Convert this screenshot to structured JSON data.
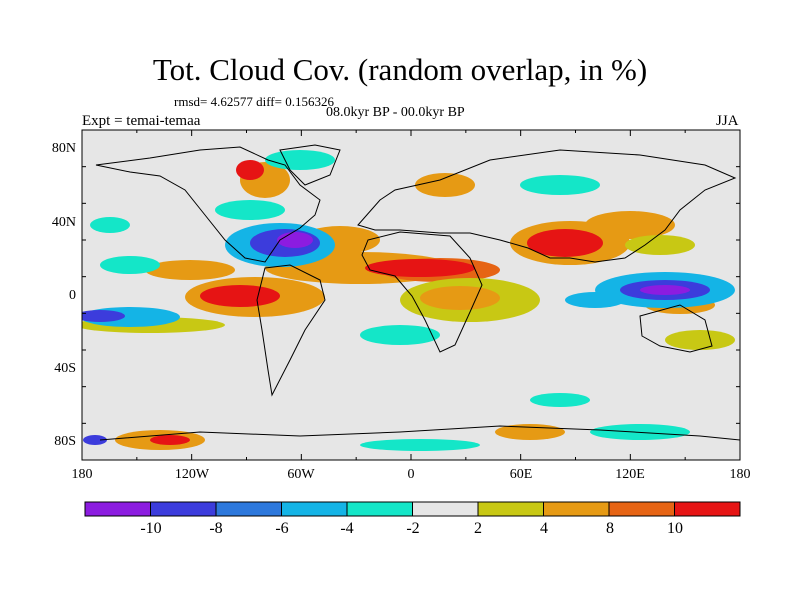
{
  "header": {
    "title": "Tot. Cloud Cov. (random overlap, in %)",
    "stats": "rmsd= 4.62577 diff= 0.156326",
    "period": "08.0kyr BP - 00.0kyr BP",
    "experiment": "Expt = temai-temaa",
    "season": "JJA"
  },
  "map": {
    "lat_labels": [
      "80N",
      "40N",
      "0",
      "40S",
      "80S"
    ],
    "lon_labels": [
      "180",
      "120W",
      "60W",
      "0",
      "60E",
      "120E",
      "180"
    ],
    "background_color": "#e6e6e6"
  },
  "colorbar": {
    "labels": [
      "-10",
      "-8",
      "-6",
      "-4",
      "-2",
      "2",
      "4",
      "8",
      "10"
    ],
    "colors": [
      "#8c1ce0",
      "#3c3cdc",
      "#2d78dc",
      "#14b4e6",
      "#14e6c8",
      "#e6e6e6",
      "#c8c814",
      "#e69a14",
      "#e66414",
      "#e61414"
    ]
  }
}
